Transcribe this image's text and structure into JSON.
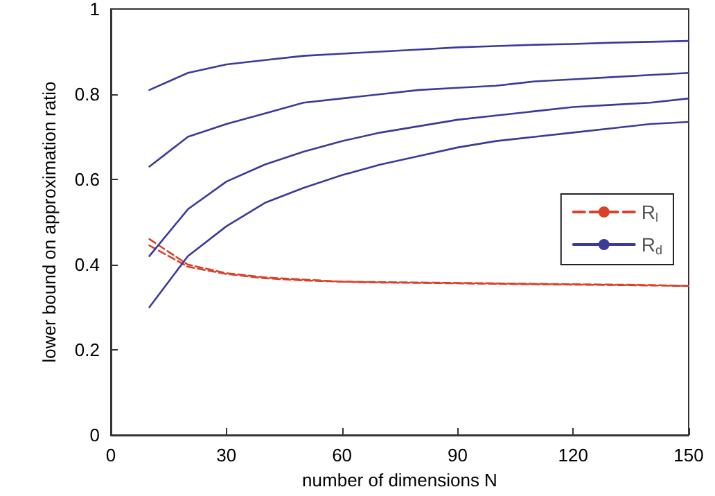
{
  "chart_data": {
    "type": "line",
    "xlabel": "number of dimensions N",
    "ylabel": "lower bound on approximation ratio",
    "xlim": [
      0,
      150
    ],
    "xticks": [
      0,
      30,
      60,
      90,
      120,
      150
    ],
    "ylim": [
      0,
      1
    ],
    "yticks": [
      0,
      0.2,
      0.4,
      0.6,
      0.8,
      1
    ],
    "grid": false,
    "legend": "right",
    "marker": "none",
    "x": [
      10,
      20,
      30,
      40,
      50,
      60,
      70,
      80,
      90,
      100,
      110,
      120,
      130,
      140,
      150
    ],
    "series": [
      {
        "name": "R$_{l}$",
        "color": "#d9412b",
        "line_style": "dashed",
        "values": [
          0.46,
          0.4,
          0.38,
          0.37,
          0.365,
          0.36,
          0.359,
          0.358,
          0.357,
          0.356,
          0.355,
          0.354,
          0.353,
          0.352,
          0.35
        ]
      },
      {
        "color": "#d9412b",
        "line_style": "dashed",
        "values": [
          0.445,
          0.395,
          0.378,
          0.368,
          0.363,
          0.36,
          0.358,
          0.357,
          0.356,
          0.355,
          0.354,
          0.353,
          0.352,
          0.351,
          0.35
        ]
      },
      {
        "name": "R$_{d}$",
        "color": "#3a3a9a",
        "line_style": "solid",
        "values": [
          0.81,
          0.85,
          0.87,
          0.88,
          0.89,
          0.895,
          0.9,
          0.905,
          0.91,
          0.913,
          0.916,
          0.918,
          0.921,
          0.923,
          0.925
        ]
      },
      {
        "color": "#3a3a9a",
        "line_style": "solid",
        "values": [
          0.63,
          0.7,
          0.73,
          0.755,
          0.78,
          0.79,
          0.8,
          0.81,
          0.815,
          0.82,
          0.83,
          0.835,
          0.84,
          0.845,
          0.85
        ]
      },
      {
        "color": "#3a3a9a",
        "line_style": "solid",
        "values": [
          0.42,
          0.53,
          0.595,
          0.635,
          0.665,
          0.69,
          0.71,
          0.725,
          0.74,
          0.75,
          0.76,
          0.77,
          0.775,
          0.78,
          0.79
        ]
      },
      {
        "color": "#3a3a9a",
        "line_style": "solid",
        "values": [
          0.3,
          0.42,
          0.49,
          0.545,
          0.58,
          0.61,
          0.635,
          0.655,
          0.675,
          0.69,
          0.7,
          0.71,
          0.72,
          0.73,
          0.735
        ]
      }
    ]
  }
}
